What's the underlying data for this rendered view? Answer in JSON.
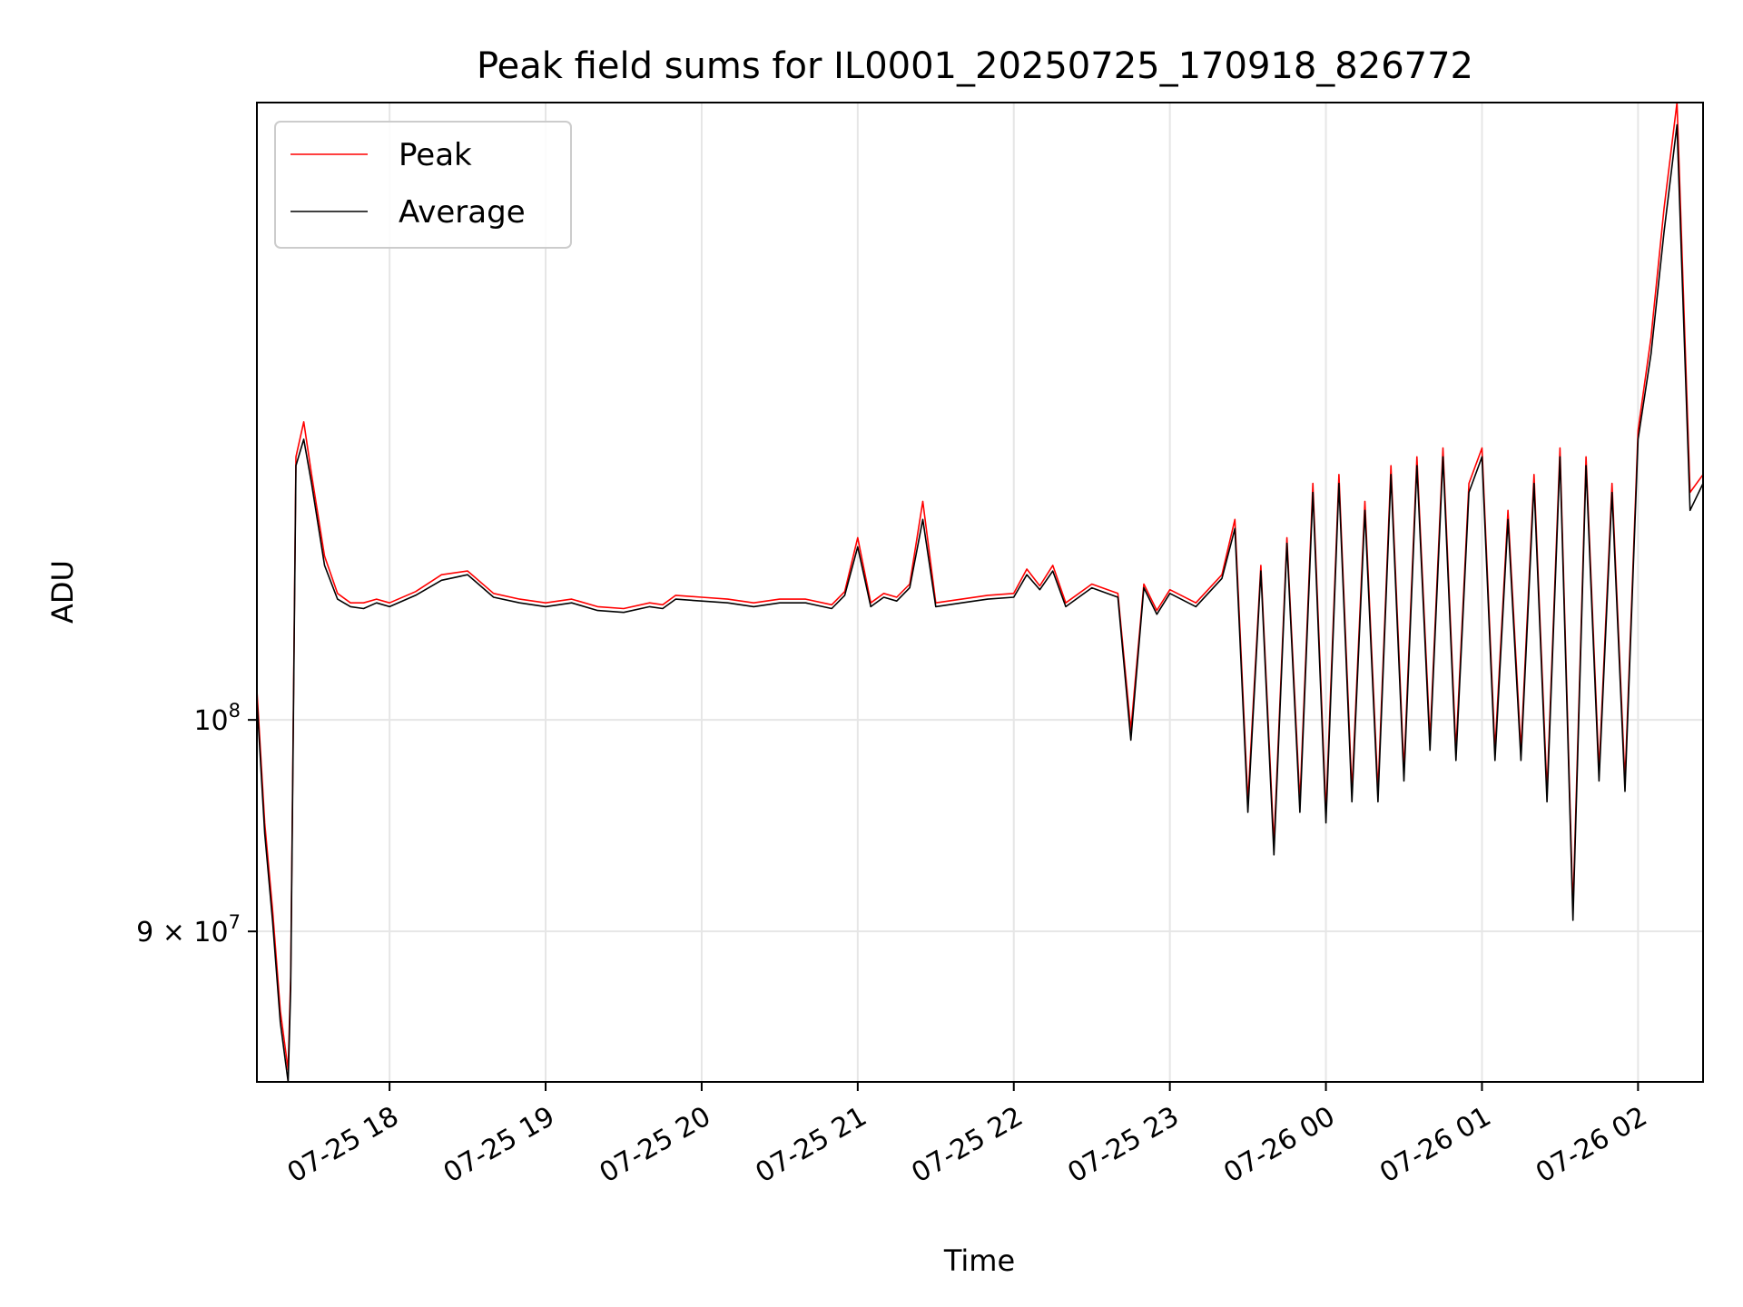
{
  "chart_data": {
    "type": "line",
    "title": "Peak field sums for IL0001_20250725_170918_826772",
    "xlabel": "Time",
    "ylabel": "ADU",
    "yscale": "log",
    "x_unit": "time",
    "xlim": [
      "07-25 17:09",
      "07-26 02:25"
    ],
    "ylim": [
      83500000,
      136000000
    ],
    "x_ticks": [
      "07-25 18",
      "07-25 19",
      "07-25 20",
      "07-25 21",
      "07-25 22",
      "07-25 23",
      "07-26 00",
      "07-26 01",
      "07-26 02"
    ],
    "y_ticks": [
      {
        "base": "10",
        "exp": "8",
        "prefix": "",
        "value": 100000000
      },
      {
        "base": "10",
        "exp": "7",
        "prefix": "9 × ",
        "value": 90000000
      }
    ],
    "grid": true,
    "legend_position": "top-left",
    "x": [
      "07-25 17:09",
      "07-25 17:12",
      "07-25 17:15",
      "07-25 17:18",
      "07-25 17:21",
      "07-25 17:22",
      "07-25 17:24",
      "07-25 17:27",
      "07-25 17:30",
      "07-25 17:35",
      "07-25 17:40",
      "07-25 17:45",
      "07-25 17:50",
      "07-25 17:55",
      "07-25 18:00",
      "07-25 18:10",
      "07-25 18:20",
      "07-25 18:30",
      "07-25 18:40",
      "07-25 18:50",
      "07-25 19:00",
      "07-25 19:10",
      "07-25 19:20",
      "07-25 19:30",
      "07-25 19:40",
      "07-25 19:45",
      "07-25 19:50",
      "07-25 20:00",
      "07-25 20:10",
      "07-25 20:20",
      "07-25 20:30",
      "07-25 20:40",
      "07-25 20:50",
      "07-25 20:55",
      "07-25 21:00",
      "07-25 21:05",
      "07-25 21:10",
      "07-25 21:15",
      "07-25 21:20",
      "07-25 21:25",
      "07-25 21:30",
      "07-25 21:40",
      "07-25 21:50",
      "07-25 22:00",
      "07-25 22:05",
      "07-25 22:10",
      "07-25 22:15",
      "07-25 22:20",
      "07-25 22:30",
      "07-25 22:40",
      "07-25 22:45",
      "07-25 22:50",
      "07-25 22:55",
      "07-25 23:00",
      "07-25 23:10",
      "07-25 23:20",
      "07-25 23:25",
      "07-25 23:30",
      "07-25 23:35",
      "07-25 23:40",
      "07-25 23:45",
      "07-25 23:50",
      "07-25 23:55",
      "07-26 00:00",
      "07-26 00:05",
      "07-26 00:10",
      "07-26 00:15",
      "07-26 00:20",
      "07-26 00:25",
      "07-26 00:30",
      "07-26 00:35",
      "07-26 00:40",
      "07-26 00:45",
      "07-26 00:50",
      "07-26 00:55",
      "07-26 01:00",
      "07-26 01:05",
      "07-26 01:10",
      "07-26 01:15",
      "07-26 01:20",
      "07-26 01:25",
      "07-26 01:30",
      "07-26 01:35",
      "07-26 01:40",
      "07-26 01:45",
      "07-26 01:50",
      "07-26 01:55",
      "07-26 02:00",
      "07-26 02:05",
      "07-26 02:10",
      "07-26 02:15",
      "07-26 02:20",
      "07-26 02:25"
    ],
    "series": [
      {
        "name": "Peak",
        "color": "#ff0000",
        "values": [
          101500000,
          95000000,
          91000000,
          86500000,
          84000000,
          88000000,
          114000000,
          116000000,
          113000000,
          108500000,
          106500000,
          106000000,
          106000000,
          106200000,
          106000000,
          106600000,
          107500000,
          107700000,
          106500000,
          106200000,
          106000000,
          106200000,
          105800000,
          105700000,
          106000000,
          105900000,
          106400000,
          106300000,
          106200000,
          106000000,
          106200000,
          106200000,
          105900000,
          106600000,
          109500000,
          106000000,
          106500000,
          106300000,
          107000000,
          111500000,
          106000000,
          106200000,
          106400000,
          106500000,
          107800000,
          106900000,
          108000000,
          106000000,
          107000000,
          106500000,
          99500000,
          107000000,
          105600000,
          106700000,
          106000000,
          107500000,
          110500000,
          96000000,
          108000000,
          94000000,
          109500000,
          96000000,
          112500000,
          95500000,
          113000000,
          96500000,
          111500000,
          96500000,
          113500000,
          97500000,
          114000000,
          99000000,
          114500000,
          98500000,
          112500000,
          114500000,
          98500000,
          111000000,
          98500000,
          113000000,
          96500000,
          114500000,
          91000000,
          114000000,
          97500000,
          112500000,
          97000000,
          115500000,
          121000000,
          129000000,
          136000000,
          112000000,
          113000000
        ]
      },
      {
        "name": "Average",
        "color": "#000000",
        "values": [
          101000000,
          94500000,
          90500000,
          86000000,
          83500000,
          87500000,
          113500000,
          115000000,
          112500000,
          108000000,
          106200000,
          105800000,
          105700000,
          106000000,
          105800000,
          106400000,
          107200000,
          107500000,
          106300000,
          106000000,
          105800000,
          106000000,
          105600000,
          105500000,
          105800000,
          105700000,
          106200000,
          106100000,
          106000000,
          105800000,
          106000000,
          106000000,
          105700000,
          106400000,
          109000000,
          105800000,
          106300000,
          106100000,
          106800000,
          110500000,
          105800000,
          106000000,
          106200000,
          106300000,
          107500000,
          106700000,
          107700000,
          105800000,
          106800000,
          106300000,
          99000000,
          106800000,
          105400000,
          106500000,
          105800000,
          107300000,
          110000000,
          95500000,
          107700000,
          93500000,
          109200000,
          95500000,
          112000000,
          95000000,
          112500000,
          96000000,
          111000000,
          96000000,
          113000000,
          97000000,
          113500000,
          98500000,
          114000000,
          98000000,
          112000000,
          114000000,
          98000000,
          110500000,
          98000000,
          112500000,
          96000000,
          114000000,
          90500000,
          113500000,
          97000000,
          112000000,
          96500000,
          115000000,
          120000000,
          127500000,
          134500000,
          111000000,
          112500000
        ]
      }
    ]
  }
}
